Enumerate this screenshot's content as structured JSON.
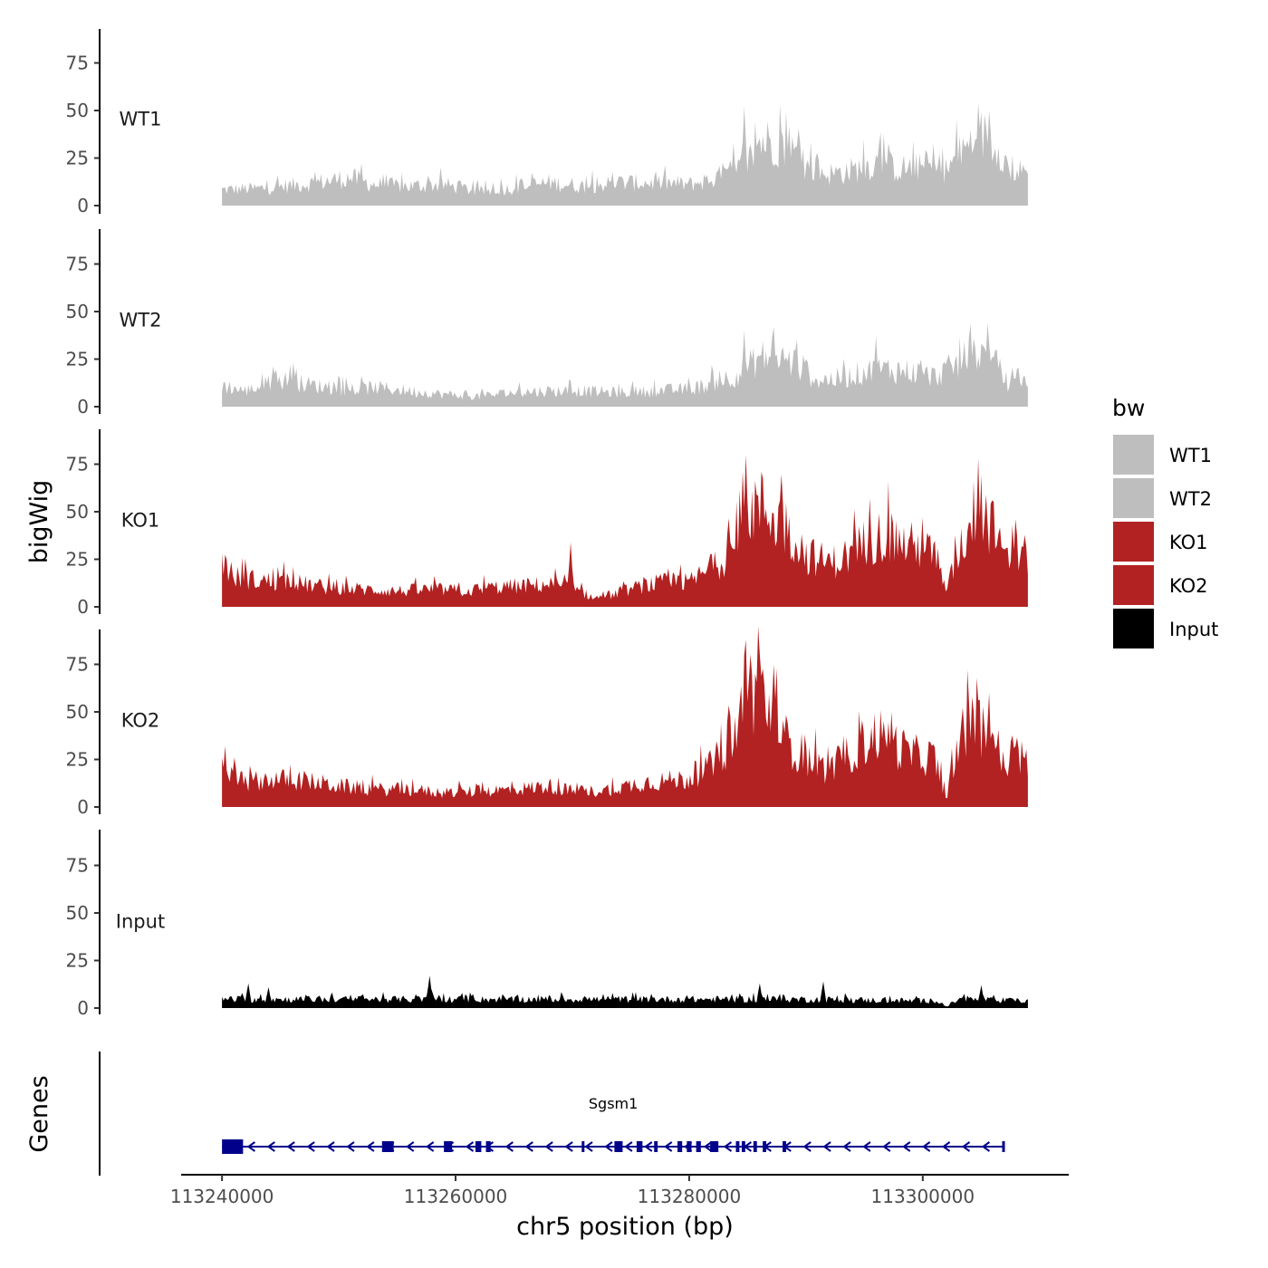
{
  "chart_data": {
    "type": "area",
    "chromosome": "chr5",
    "xlabel": "chr5 position (bp)",
    "ylabel": "bigWig",
    "genes_label": "Genes",
    "xlim": [
      113236500,
      113312500
    ],
    "data_range": [
      113240000,
      113309000
    ],
    "ylim": [
      0,
      95
    ],
    "xticks": [
      {
        "value": 113240000,
        "label": "113240000"
      },
      {
        "value": 113260000,
        "label": "113260000"
      },
      {
        "value": 113280000,
        "label": "113280000"
      },
      {
        "value": 113300000,
        "label": "113300000"
      }
    ],
    "yticks": [
      {
        "value": 0,
        "label": "0"
      },
      {
        "value": 25,
        "label": "25"
      },
      {
        "value": 50,
        "label": "50"
      },
      {
        "value": 75,
        "label": "75"
      }
    ],
    "legend": {
      "title": "bw",
      "position": "right",
      "entries": [
        {
          "label": "WT1",
          "color": "#bebebe"
        },
        {
          "label": "WT2",
          "color": "#bebebe"
        },
        {
          "label": "KO1",
          "color": "#b22222"
        },
        {
          "label": "KO2",
          "color": "#b22222"
        },
        {
          "label": "Input",
          "color": "#000000"
        }
      ]
    },
    "series": [
      {
        "name": "WT1",
        "color": "#bebebe",
        "profile": [
          [
            113240000,
            9
          ],
          [
            113244000,
            10
          ],
          [
            113248000,
            13
          ],
          [
            113251000,
            16
          ],
          [
            113253000,
            12
          ],
          [
            113256000,
            11
          ],
          [
            113259000,
            12
          ],
          [
            113262000,
            8
          ],
          [
            113265000,
            10
          ],
          [
            113268000,
            13
          ],
          [
            113271000,
            11
          ],
          [
            113274000,
            13
          ],
          [
            113277000,
            13
          ],
          [
            113280000,
            12
          ],
          [
            113282000,
            15
          ],
          [
            113284000,
            20
          ],
          [
            113285000,
            24
          ],
          [
            113286000,
            37
          ],
          [
            113287500,
            36
          ],
          [
            113289000,
            30
          ],
          [
            113290000,
            22
          ],
          [
            113292000,
            18
          ],
          [
            113294000,
            20
          ],
          [
            113296000,
            24
          ],
          [
            113298000,
            21
          ],
          [
            113300000,
            22
          ],
          [
            113302000,
            20
          ],
          [
            113303500,
            32
          ],
          [
            113305000,
            40
          ],
          [
            113306500,
            35
          ],
          [
            113307500,
            18
          ],
          [
            113309000,
            20
          ]
        ],
        "spikes": [
          [
            113284700,
            52
          ],
          [
            113304700,
            54
          ],
          [
            113305700,
            50
          ],
          [
            113252000,
            22
          ],
          [
            113288500,
            42
          ],
          [
            113297000,
            33
          ]
        ]
      },
      {
        "name": "WT2",
        "color": "#bebebe",
        "profile": [
          [
            113240000,
            12
          ],
          [
            113242000,
            9
          ],
          [
            113245000,
            15
          ],
          [
            113248000,
            12
          ],
          [
            113251000,
            9
          ],
          [
            113253000,
            11
          ],
          [
            113256000,
            9
          ],
          [
            113259000,
            7
          ],
          [
            113262000,
            6
          ],
          [
            113265000,
            8
          ],
          [
            113268000,
            9
          ],
          [
            113271000,
            9
          ],
          [
            113274000,
            8
          ],
          [
            113277000,
            9
          ],
          [
            113280000,
            10
          ],
          [
            113282000,
            13
          ],
          [
            113284000,
            18
          ],
          [
            113285000,
            22
          ],
          [
            113286000,
            28
          ],
          [
            113287500,
            28
          ],
          [
            113289000,
            25
          ],
          [
            113291000,
            15
          ],
          [
            113293000,
            16
          ],
          [
            113295000,
            20
          ],
          [
            113297000,
            21
          ],
          [
            113299000,
            20
          ],
          [
            113301000,
            17
          ],
          [
            113303000,
            24
          ],
          [
            113304500,
            32
          ],
          [
            113306000,
            25
          ],
          [
            113307500,
            12
          ],
          [
            113309000,
            14
          ]
        ],
        "spikes": [
          [
            113284700,
            40
          ],
          [
            113287200,
            42
          ],
          [
            113305500,
            44
          ],
          [
            113245800,
            22
          ],
          [
            113296000,
            37
          ]
        ]
      },
      {
        "name": "KO1",
        "color": "#b22222",
        "profile": [
          [
            113240000,
            28
          ],
          [
            113241000,
            17
          ],
          [
            113243000,
            15
          ],
          [
            113246000,
            14
          ],
          [
            113249000,
            11
          ],
          [
            113252000,
            10
          ],
          [
            113255000,
            9
          ],
          [
            113258000,
            10
          ],
          [
            113261000,
            9
          ],
          [
            113263000,
            11
          ],
          [
            113266000,
            12
          ],
          [
            113268000,
            13
          ],
          [
            113270000,
            10
          ],
          [
            113272000,
            5
          ],
          [
            113274000,
            8
          ],
          [
            113276000,
            12
          ],
          [
            113278000,
            14
          ],
          [
            113280000,
            14
          ],
          [
            113282000,
            22
          ],
          [
            113284000,
            34
          ],
          [
            113285000,
            58
          ],
          [
            113286500,
            56
          ],
          [
            113288000,
            48
          ],
          [
            113290000,
            30
          ],
          [
            113292000,
            25
          ],
          [
            113294000,
            30
          ],
          [
            113295500,
            40
          ],
          [
            113297000,
            40
          ],
          [
            113299000,
            35
          ],
          [
            113301000,
            30
          ],
          [
            113302000,
            8
          ],
          [
            113303000,
            30
          ],
          [
            113304500,
            55
          ],
          [
            113306000,
            45
          ],
          [
            113307000,
            25
          ],
          [
            113308500,
            32
          ],
          [
            113309000,
            28
          ]
        ],
        "spikes": [
          [
            113284800,
            80
          ],
          [
            113304700,
            78
          ],
          [
            113295500,
            57
          ],
          [
            113306000,
            56
          ],
          [
            113300000,
            47
          ],
          [
            113269800,
            34
          ],
          [
            113307900,
            46
          ]
        ]
      },
      {
        "name": "KO2",
        "color": "#b22222",
        "profile": [
          [
            113240000,
            20
          ],
          [
            113242000,
            14
          ],
          [
            113244000,
            16
          ],
          [
            113247000,
            15
          ],
          [
            113250000,
            12
          ],
          [
            113253000,
            10
          ],
          [
            113256000,
            10
          ],
          [
            113259000,
            8
          ],
          [
            113262000,
            9
          ],
          [
            113265000,
            10
          ],
          [
            113268000,
            12
          ],
          [
            113270000,
            9
          ],
          [
            113272000,
            9
          ],
          [
            113274000,
            11
          ],
          [
            113276000,
            14
          ],
          [
            113278000,
            15
          ],
          [
            113280000,
            16
          ],
          [
            113282000,
            24
          ],
          [
            113284000,
            42
          ],
          [
            113285000,
            68
          ],
          [
            113286500,
            62
          ],
          [
            113288000,
            40
          ],
          [
            113290000,
            28
          ],
          [
            113292000,
            20
          ],
          [
            113294000,
            32
          ],
          [
            113296000,
            42
          ],
          [
            113297500,
            36
          ],
          [
            113299000,
            30
          ],
          [
            113301000,
            28
          ],
          [
            113302000,
            5
          ],
          [
            113303000,
            38
          ],
          [
            113304500,
            48
          ],
          [
            113306000,
            42
          ],
          [
            113307000,
            22
          ],
          [
            113308500,
            30
          ],
          [
            113309000,
            22
          ]
        ],
        "spikes": [
          [
            113284800,
            88
          ],
          [
            113286000,
            80
          ],
          [
            113287200,
            75
          ],
          [
            113297300,
            50
          ],
          [
            113304700,
            56
          ],
          [
            113305700,
            60
          ],
          [
            113240200,
            32
          ]
        ]
      },
      {
        "name": "Input",
        "color": "#000000",
        "profile": [
          [
            113240000,
            5
          ],
          [
            113250000,
            5
          ],
          [
            113260000,
            5
          ],
          [
            113270000,
            5
          ],
          [
            113280000,
            5
          ],
          [
            113290000,
            5
          ],
          [
            113301500,
            4
          ],
          [
            113302000,
            0.5
          ],
          [
            113303000,
            5
          ],
          [
            113309000,
            4
          ]
        ],
        "spikes": [
          [
            113257800,
            17
          ],
          [
            113242200,
            13
          ],
          [
            113286000,
            13
          ],
          [
            113291500,
            14
          ],
          [
            113305000,
            12
          ],
          [
            113244000,
            11
          ]
        ]
      }
    ],
    "gene": {
      "name": "Sgsm1",
      "strand": "-",
      "color": "#00008b",
      "start": 113240000,
      "end": 113307000,
      "exons": [
        [
          113240000,
          113241800
        ],
        [
          113253700,
          113254700
        ],
        [
          113259000,
          113259700
        ],
        [
          113261700,
          113262200
        ],
        [
          113262600,
          113263000
        ],
        [
          113270800,
          113271000
        ],
        [
          113273600,
          113274300
        ],
        [
          113275500,
          113276000
        ],
        [
          113277000,
          113277300
        ],
        [
          113279000,
          113279400
        ],
        [
          113279800,
          113280200
        ],
        [
          113280600,
          113281000
        ],
        [
          113281800,
          113282500
        ],
        [
          113284000,
          113284300
        ],
        [
          113284500,
          113284800
        ],
        [
          113285500,
          113285800
        ],
        [
          113286300,
          113286600
        ],
        [
          113288000,
          113288300
        ],
        [
          113306800,
          113307000
        ]
      ]
    }
  }
}
